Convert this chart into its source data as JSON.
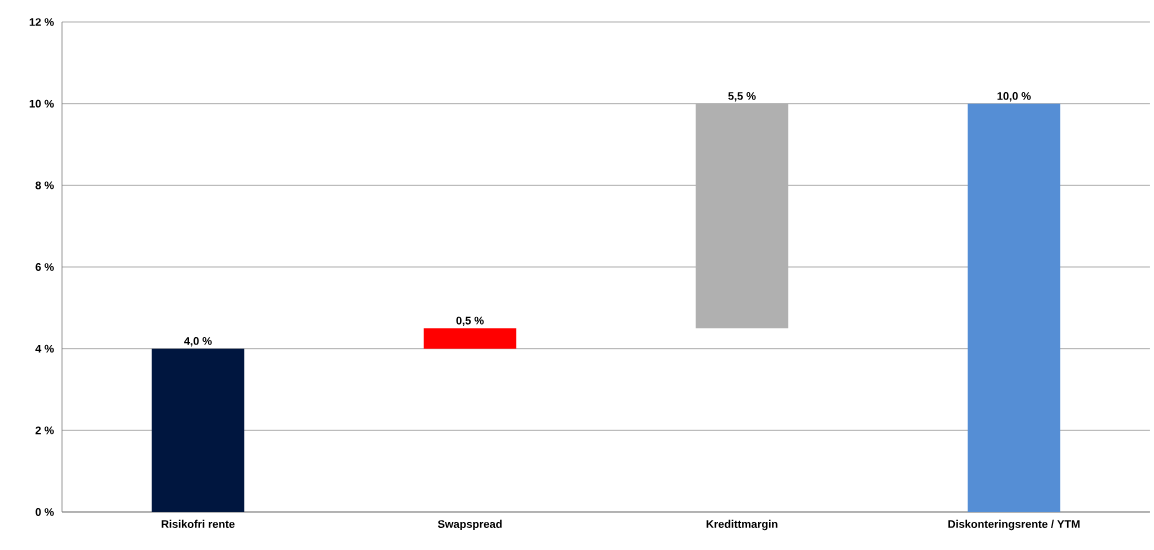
{
  "chart_data": {
    "type": "bar",
    "categories": [
      "Risikofri rente",
      "Swapspread",
      "Kredittmargin",
      "Diskonteringsrente / YTM"
    ],
    "values": [
      4.0,
      0.5,
      5.5,
      10.0
    ],
    "base": [
      0,
      4.0,
      4.5,
      0
    ],
    "colors": [
      "#00163f",
      "#ff0000",
      "#b0b0b0",
      "#558ed5"
    ],
    "value_labels": [
      "4,0 %",
      "0,5 %",
      "5,5 %",
      "10,0 %"
    ],
    "ylim": [
      0,
      12
    ],
    "yticks": [
      {
        "value": 0,
        "label": "0 %"
      },
      {
        "value": 2,
        "label": "2 %"
      },
      {
        "value": 4,
        "label": "4 %"
      },
      {
        "value": 6,
        "label": "6 %"
      },
      {
        "value": 8,
        "label": "8 %"
      },
      {
        "value": 10,
        "label": "10 %"
      },
      {
        "value": 12,
        "label": "12 %"
      }
    ],
    "grid": "y"
  }
}
